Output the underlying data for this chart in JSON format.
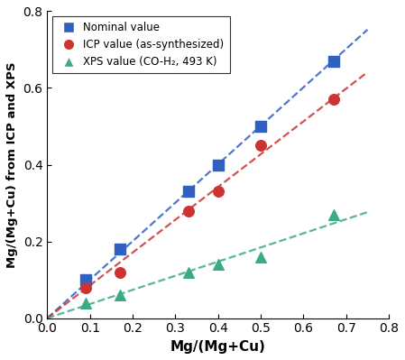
{
  "nominal_x": [
    0.09,
    0.17,
    0.33,
    0.4,
    0.5,
    0.67
  ],
  "nominal_y": [
    0.1,
    0.18,
    0.33,
    0.4,
    0.5,
    0.67
  ],
  "icp_x": [
    0.09,
    0.17,
    0.33,
    0.4,
    0.5,
    0.67
  ],
  "icp_y": [
    0.08,
    0.12,
    0.28,
    0.33,
    0.45,
    0.57
  ],
  "xps_x": [
    0.09,
    0.17,
    0.33,
    0.4,
    0.5,
    0.67
  ],
  "xps_y": [
    0.04,
    0.06,
    0.12,
    0.14,
    0.16,
    0.27
  ],
  "nominal_color": "#3060c0",
  "icp_color": "#cc3333",
  "xps_color": "#3aaa88",
  "xlabel": "Mg/(Mg+Cu)",
  "ylabel": "Mg/(Mg+Cu) from ICP and XPS",
  "xlim": [
    0.0,
    0.8
  ],
  "ylim": [
    0.0,
    0.8
  ],
  "xticks": [
    0.0,
    0.1,
    0.2,
    0.3,
    0.4,
    0.5,
    0.6,
    0.7,
    0.8
  ],
  "yticks": [
    0.0,
    0.2,
    0.4,
    0.6,
    0.8
  ],
  "legend_labels": [
    "Nominal value",
    "ICP value (as-synthesized)",
    "XPS value (CO-H₂, 493 K)"
  ],
  "line_extent": 0.75
}
